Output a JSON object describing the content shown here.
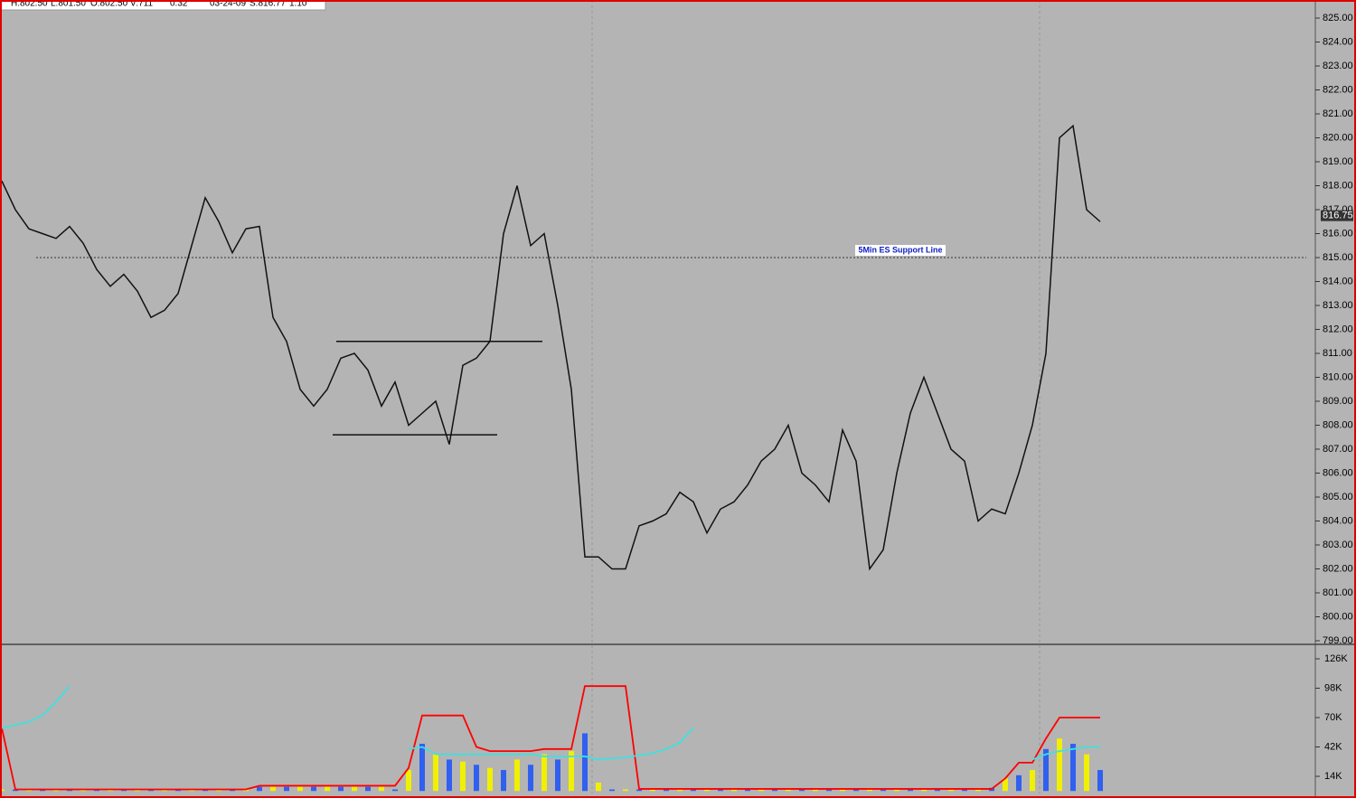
{
  "header": {
    "items": [
      "H:802.50",
      "L:801.50",
      "O:802.50",
      "V:711",
      "0.32",
      "03-24-09",
      "S:816.77",
      "1.10"
    ]
  },
  "chart_data": [
    {
      "type": "line",
      "color": "#111111",
      "values": [
        818.2,
        817,
        816.2,
        816,
        815.8,
        816.3,
        815.6,
        814.5,
        813.8,
        814.3,
        813.6,
        812.5,
        812.8,
        813.5,
        815.5,
        817.5,
        816.5,
        815.2,
        816.2,
        816.3,
        812.5,
        811.5,
        809.5,
        808.8,
        809.5,
        810.8,
        811,
        810.3,
        808.8,
        809.8,
        808,
        808.5,
        809,
        807.2,
        810.5,
        810.8,
        811.5,
        816,
        818,
        815.5,
        816,
        813,
        809.5,
        802.5,
        802.5,
        802,
        802,
        803.8,
        804,
        804.3,
        805.2,
        804.8,
        803.5,
        804.5,
        804.8,
        805.5,
        806.5,
        807,
        808,
        806,
        805.5,
        804.8,
        807.8,
        806.5,
        802,
        802.8,
        806,
        808.5,
        810,
        808.5,
        807,
        806.5,
        804,
        804.5,
        804.3,
        806,
        808,
        811,
        820,
        820.5,
        817,
        816.5
      ],
      "ylim": [
        799,
        825
      ],
      "yticks": [
        {
          "value": 825,
          "label": "825.00"
        },
        {
          "value": 824,
          "label": "824.00"
        },
        {
          "value": 823,
          "label": "823.00"
        },
        {
          "value": 822,
          "label": "822.00"
        },
        {
          "value": 821,
          "label": "821.00"
        },
        {
          "value": 820,
          "label": "820.00"
        },
        {
          "value": 819,
          "label": "819.00"
        },
        {
          "value": 818,
          "label": "818.00"
        },
        {
          "value": 817,
          "label": "817.00"
        },
        {
          "value": 816,
          "label": "816.00"
        },
        {
          "value": 815,
          "label": "815.00"
        },
        {
          "value": 814,
          "label": "814.00"
        },
        {
          "value": 813,
          "label": "813.00"
        },
        {
          "value": 812,
          "label": "812.00"
        },
        {
          "value": 811,
          "label": "811.00"
        },
        {
          "value": 810,
          "label": "810.00"
        },
        {
          "value": 809,
          "label": "809.00"
        },
        {
          "value": 808,
          "label": "808.00"
        },
        {
          "value": 807,
          "label": "807.00"
        },
        {
          "value": 806,
          "label": "806.00"
        },
        {
          "value": 805,
          "label": "805.00"
        },
        {
          "value": 804,
          "label": "804.00"
        },
        {
          "value": 803,
          "label": "803.00"
        },
        {
          "value": 802,
          "label": "802.00"
        },
        {
          "value": 801,
          "label": "801.00"
        },
        {
          "value": 800,
          "label": "800.00"
        },
        {
          "value": 799,
          "label": "799.00"
        }
      ],
      "support": {
        "value": 815,
        "label": "5Min ES Support Line"
      },
      "levels": [
        {
          "value": 811.5
        },
        {
          "value": 807.6
        }
      ],
      "last": {
        "value": 816.75,
        "label": "816.75"
      }
    },
    {
      "type": "bar",
      "series": [
        {
          "colors": [
            "#f0f000",
            "#3060f0"
          ],
          "values": [
            1500,
            1500,
            1500,
            1500,
            1500,
            1500,
            1500,
            1500,
            1500,
            1500,
            1500,
            1500,
            1500,
            1500,
            1500,
            1500,
            1500,
            1500,
            1500,
            4000,
            4000,
            4000,
            4000,
            4000,
            4000,
            4000,
            4000,
            4000,
            4000,
            1500,
            20000,
            45000,
            35000,
            30000,
            28000,
            25000,
            22000,
            20000,
            30000,
            25000,
            35000,
            30000,
            38000,
            55000,
            8000,
            1500,
            1500,
            1500,
            1500,
            1500,
            1500,
            1500,
            1500,
            1500,
            1500,
            1500,
            1500,
            1500,
            1500,
            1500,
            1500,
            1500,
            1500,
            1500,
            1500,
            1500,
            1500,
            1500,
            1500,
            1500,
            1500,
            1500,
            1500,
            3000,
            12000,
            15000,
            20000,
            40000,
            50000,
            45000,
            35000,
            20000
          ]
        },
        {
          "color": "#ff0000",
          "values": [
            60000,
            1500,
            1500,
            1500,
            1500,
            1500,
            1500,
            1500,
            1500,
            1500,
            1500,
            1500,
            1500,
            1500,
            1500,
            1500,
            1500,
            1500,
            1500,
            5000,
            5000,
            5000,
            5000,
            5000,
            5000,
            5000,
            5000,
            5000,
            5000,
            5000,
            22000,
            72000,
            72000,
            72000,
            72000,
            42000,
            38000,
            38000,
            38000,
            38000,
            40000,
            40000,
            40000,
            100000,
            100000,
            100000,
            100000,
            2000,
            2000,
            2000,
            2000,
            2000,
            2000,
            2000,
            2000,
            2000,
            2000,
            2000,
            2000,
            2000,
            2000,
            2000,
            2000,
            2000,
            2000,
            2000,
            2000,
            2000,
            2000,
            2000,
            2000,
            2000,
            2000,
            2000,
            12000,
            27000,
            27000,
            50000,
            70000,
            70000,
            70000,
            70000
          ]
        },
        {
          "color": "#40e0e0",
          "values": [
            60000,
            63000,
            66000,
            72000,
            85000,
            100000,
            null,
            null,
            null,
            null,
            null,
            null,
            null,
            null,
            null,
            null,
            null,
            null,
            null,
            null,
            null,
            null,
            null,
            null,
            null,
            null,
            null,
            null,
            null,
            null,
            40000,
            42000,
            35000,
            35000,
            35000,
            35000,
            35000,
            35000,
            35000,
            35000,
            33000,
            33000,
            33000,
            33000,
            30000,
            31000,
            32000,
            34000,
            36000,
            40000,
            46000,
            60000,
            null,
            null,
            null,
            null,
            null,
            null,
            null,
            null,
            null,
            null,
            null,
            null,
            null,
            null,
            null,
            null,
            null,
            null,
            null,
            null,
            null,
            null,
            null,
            null,
            30000,
            35000,
            38000,
            40000,
            42000,
            42000
          ]
        }
      ],
      "ylim": [
        0,
        136000
      ],
      "yticks": [
        {
          "value": 126000,
          "label": "126K"
        },
        {
          "value": 98000,
          "label": "98K"
        },
        {
          "value": 70000,
          "label": "70K"
        },
        {
          "value": 42000,
          "label": "42K"
        },
        {
          "value": 14000,
          "label": "14K"
        }
      ]
    }
  ]
}
